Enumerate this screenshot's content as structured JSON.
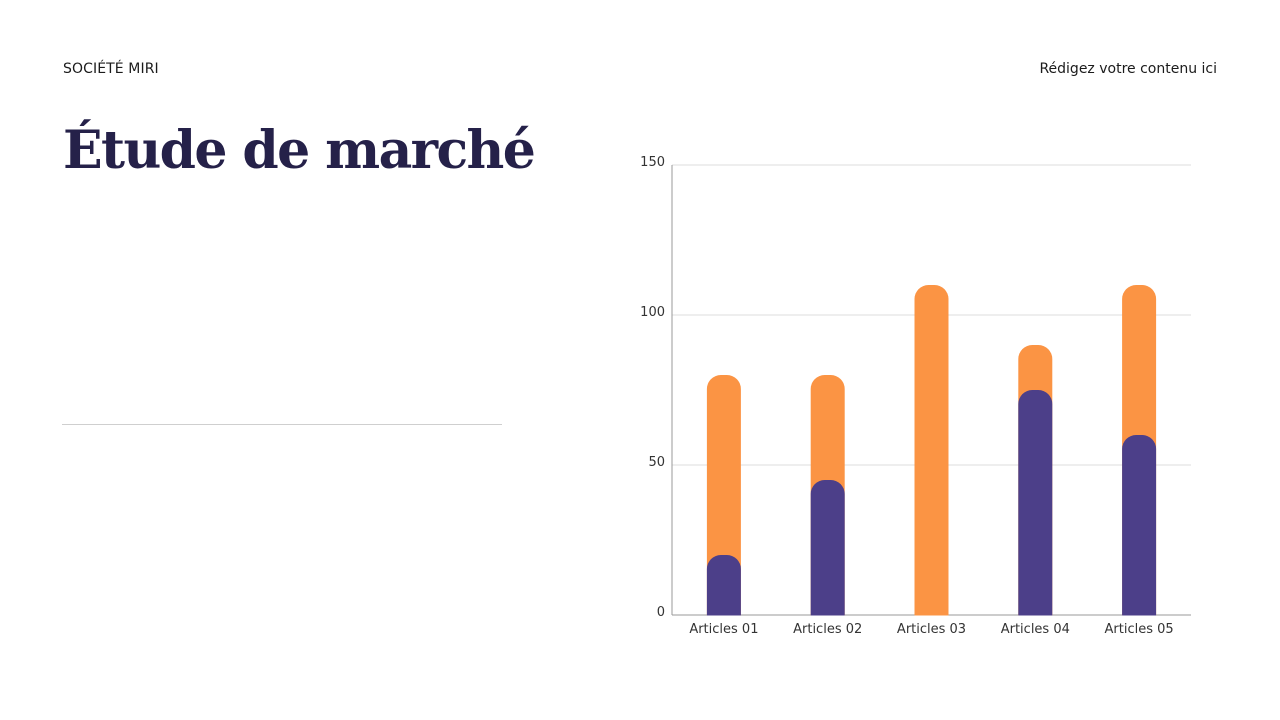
{
  "header": {
    "company": "SOCIÉTÉ MIRI",
    "placeholder": "Rédigez votre contenu ici"
  },
  "title": "Étude de marché",
  "colors": {
    "title": "#252149",
    "series_bottom": "#4c3f89",
    "series_top": "#fb9444",
    "grid": "#dcdcdc"
  },
  "chart_data": {
    "type": "bar",
    "stacked": true,
    "categories": [
      "Articles 01",
      "Articles 02",
      "Articles 03",
      "Articles 04",
      "Articles 05"
    ],
    "series": [
      {
        "values": [
          20,
          45,
          0,
          75,
          60
        ],
        "color": "#4c3f89"
      },
      {
        "values": [
          60,
          35,
          110,
          15,
          50
        ],
        "color": "#fb9444"
      }
    ],
    "ylim": [
      0,
      150
    ],
    "yticks": [
      0,
      50,
      100,
      150
    ],
    "grid": true,
    "legend": "none",
    "title": "",
    "xlabel": "",
    "ylabel": ""
  }
}
